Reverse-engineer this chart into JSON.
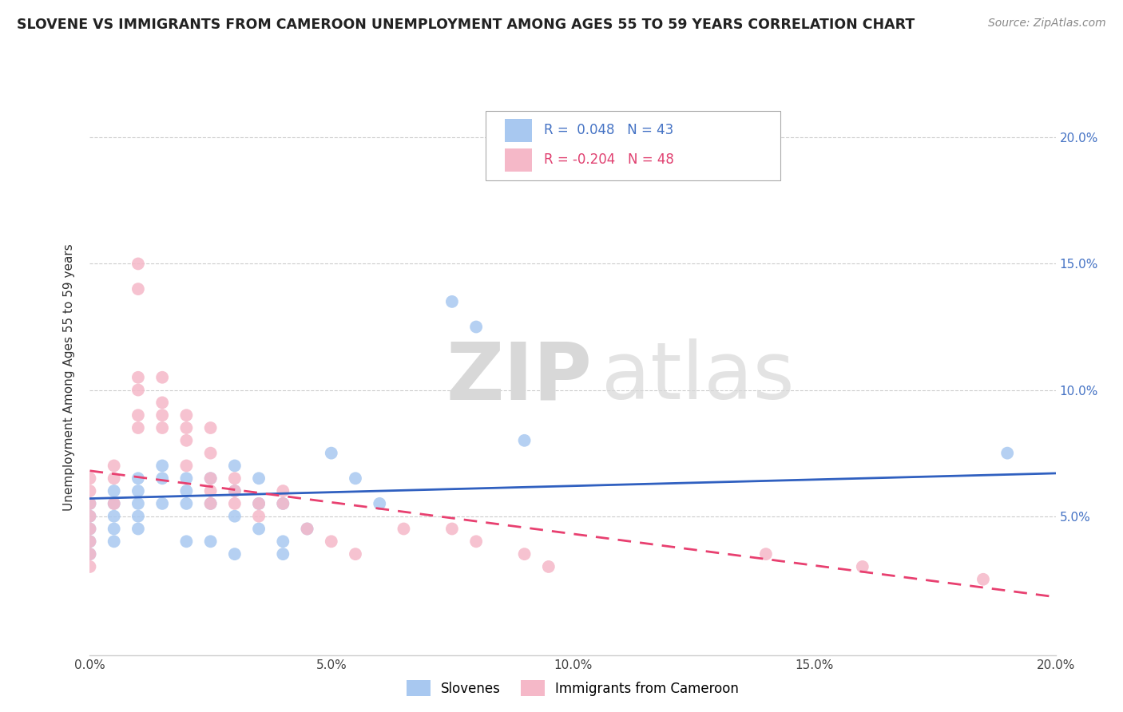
{
  "title": "SLOVENE VS IMMIGRANTS FROM CAMEROON UNEMPLOYMENT AMONG AGES 55 TO 59 YEARS CORRELATION CHART",
  "source": "Source: ZipAtlas.com",
  "ylabel": "Unemployment Among Ages 55 to 59 years",
  "xmin": 0.0,
  "xmax": 0.2,
  "ymin": -0.005,
  "ymax": 0.215,
  "legend_blue_r": "0.048",
  "legend_blue_n": "43",
  "legend_pink_r": "-0.204",
  "legend_pink_n": "48",
  "legend_blue_label": "Slovenes",
  "legend_pink_label": "Immigrants from Cameroon",
  "blue_color": "#a8c8f0",
  "pink_color": "#f5b8c8",
  "line_blue_color": "#3060c0",
  "line_pink_color": "#e84070",
  "watermark_zip": "ZIP",
  "watermark_atlas": "atlas",
  "blue_scatter": [
    [
      0.0,
      0.055
    ],
    [
      0.0,
      0.05
    ],
    [
      0.0,
      0.045
    ],
    [
      0.0,
      0.04
    ],
    [
      0.0,
      0.035
    ],
    [
      0.005,
      0.06
    ],
    [
      0.005,
      0.055
    ],
    [
      0.005,
      0.05
    ],
    [
      0.005,
      0.045
    ],
    [
      0.005,
      0.04
    ],
    [
      0.01,
      0.065
    ],
    [
      0.01,
      0.06
    ],
    [
      0.01,
      0.055
    ],
    [
      0.01,
      0.05
    ],
    [
      0.01,
      0.045
    ],
    [
      0.015,
      0.07
    ],
    [
      0.015,
      0.065
    ],
    [
      0.015,
      0.055
    ],
    [
      0.02,
      0.065
    ],
    [
      0.02,
      0.06
    ],
    [
      0.02,
      0.055
    ],
    [
      0.02,
      0.04
    ],
    [
      0.025,
      0.065
    ],
    [
      0.025,
      0.055
    ],
    [
      0.025,
      0.04
    ],
    [
      0.03,
      0.07
    ],
    [
      0.03,
      0.06
    ],
    [
      0.03,
      0.05
    ],
    [
      0.03,
      0.035
    ],
    [
      0.035,
      0.065
    ],
    [
      0.035,
      0.055
    ],
    [
      0.035,
      0.045
    ],
    [
      0.04,
      0.055
    ],
    [
      0.04,
      0.04
    ],
    [
      0.04,
      0.035
    ],
    [
      0.045,
      0.045
    ],
    [
      0.05,
      0.075
    ],
    [
      0.055,
      0.065
    ],
    [
      0.06,
      0.055
    ],
    [
      0.075,
      0.135
    ],
    [
      0.08,
      0.125
    ],
    [
      0.09,
      0.08
    ],
    [
      0.19,
      0.075
    ]
  ],
  "pink_scatter": [
    [
      0.0,
      0.065
    ],
    [
      0.0,
      0.06
    ],
    [
      0.0,
      0.055
    ],
    [
      0.0,
      0.05
    ],
    [
      0.0,
      0.045
    ],
    [
      0.0,
      0.04
    ],
    [
      0.0,
      0.035
    ],
    [
      0.0,
      0.03
    ],
    [
      0.005,
      0.07
    ],
    [
      0.005,
      0.065
    ],
    [
      0.005,
      0.055
    ],
    [
      0.01,
      0.15
    ],
    [
      0.01,
      0.14
    ],
    [
      0.01,
      0.105
    ],
    [
      0.01,
      0.1
    ],
    [
      0.01,
      0.09
    ],
    [
      0.01,
      0.085
    ],
    [
      0.015,
      0.105
    ],
    [
      0.015,
      0.095
    ],
    [
      0.015,
      0.09
    ],
    [
      0.015,
      0.085
    ],
    [
      0.02,
      0.09
    ],
    [
      0.02,
      0.085
    ],
    [
      0.02,
      0.08
    ],
    [
      0.02,
      0.07
    ],
    [
      0.025,
      0.085
    ],
    [
      0.025,
      0.075
    ],
    [
      0.025,
      0.065
    ],
    [
      0.025,
      0.06
    ],
    [
      0.025,
      0.055
    ],
    [
      0.03,
      0.065
    ],
    [
      0.03,
      0.06
    ],
    [
      0.03,
      0.055
    ],
    [
      0.035,
      0.055
    ],
    [
      0.035,
      0.05
    ],
    [
      0.04,
      0.06
    ],
    [
      0.04,
      0.055
    ],
    [
      0.045,
      0.045
    ],
    [
      0.05,
      0.04
    ],
    [
      0.055,
      0.035
    ],
    [
      0.065,
      0.045
    ],
    [
      0.075,
      0.045
    ],
    [
      0.08,
      0.04
    ],
    [
      0.09,
      0.035
    ],
    [
      0.095,
      0.03
    ],
    [
      0.14,
      0.035
    ],
    [
      0.16,
      0.03
    ],
    [
      0.185,
      0.025
    ]
  ],
  "blue_line_x": [
    0.0,
    0.2
  ],
  "blue_line_y": [
    0.057,
    0.067
  ],
  "pink_line_x": [
    0.0,
    0.2
  ],
  "pink_line_y": [
    0.068,
    0.018
  ]
}
